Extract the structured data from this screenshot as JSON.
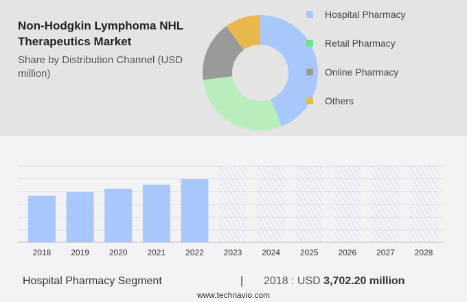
{
  "header": {
    "title": "Non-Hodgkin Lymphoma NHL Therapeutics Market",
    "subtitle": "Share by Distribution Channel (USD million)"
  },
  "chart_data": [
    {
      "type": "pie",
      "subtype": "donut",
      "labels": [
        "Hospital Pharmacy",
        "Retail Pharmacy",
        "Online Pharmacy",
        "Others"
      ],
      "values": [
        44,
        29,
        17,
        10
      ],
      "colors": [
        "#a8c8fc",
        "#b8eebc",
        "#9a9a9a",
        "#e8b84c"
      ],
      "legend_colors": [
        "#a8c8fc",
        "#6ee08e",
        "#9a9a9a",
        "#e0bc4c"
      ],
      "legend": "right"
    },
    {
      "type": "bar",
      "categories": [
        "2018",
        "2019",
        "2020",
        "2021",
        "2022",
        "2023",
        "2024",
        "2025",
        "2026",
        "2027",
        "2028"
      ],
      "values": [
        3702.2,
        3975,
        4250,
        4570,
        5000,
        null,
        null,
        null,
        null,
        null,
        null
      ],
      "forecast_hatched": [
        "2023",
        "2024",
        "2025",
        "2026",
        "2027",
        "2028"
      ],
      "color": "#a8c8fc",
      "grid": true
    }
  ],
  "footer": {
    "segment": "Hospital Pharmacy Segment",
    "separator": "|",
    "year_label": "2018 : USD",
    "value": "3,702.20 million",
    "site": "www.technavio.com"
  }
}
